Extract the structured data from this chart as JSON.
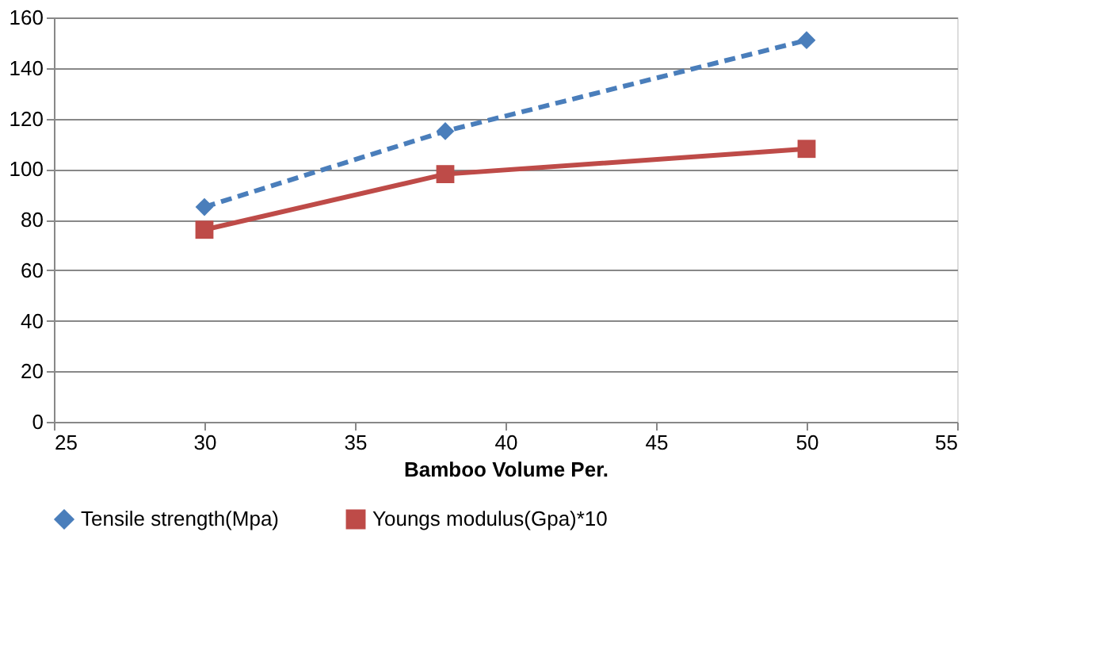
{
  "chart_data": {
    "type": "line",
    "xlabel": "Bamboo Volume Per.",
    "x": [
      30,
      38,
      50
    ],
    "series": [
      {
        "name": "Tensile strength(Mpa)",
        "color": "#4a7ebb",
        "values": [
          85,
          115,
          151
        ],
        "marker": "diamond",
        "line_style": "dashed"
      },
      {
        "name": "Youngs modulus(Gpa)*10",
        "color": "#be4b48",
        "values": [
          76,
          98,
          108
        ],
        "marker": "square",
        "line_style": "solid"
      }
    ],
    "xlim": [
      25,
      55
    ],
    "xticks": [
      25,
      30,
      35,
      40,
      45,
      50,
      55
    ],
    "ylim": [
      0,
      160
    ],
    "yticks": [
      0,
      20,
      40,
      60,
      80,
      100,
      120,
      140,
      160
    ],
    "grid": "y",
    "legend": "bottom"
  }
}
